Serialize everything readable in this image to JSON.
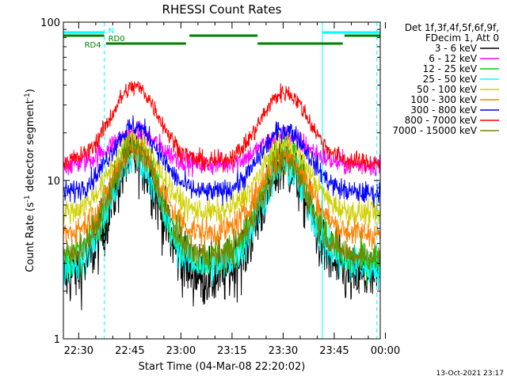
{
  "chart_data": {
    "type": "line",
    "title": "RHESSI Count Rates",
    "xlabel": "Start Time (04-Mar-08 22:20:02)",
    "ylabel": "Count Rate (s⁻¹ detector segment⁻¹)",
    "ylabel_parts": [
      "Count Rate (s",
      "-1",
      " detector segment",
      "-1",
      ")"
    ],
    "x_tick_labels": [
      "22:30",
      "22:45",
      "23:00",
      "23:15",
      "23:30",
      "23:45",
      "00:00"
    ],
    "x_tick_minutes": [
      10,
      25,
      40,
      55,
      70,
      85,
      100
    ],
    "x_range_minutes": [
      5.5,
      98.5
    ],
    "y_scale": "log",
    "ylim": [
      1,
      100
    ],
    "y_tick_labels": [
      "1",
      "10",
      "100"
    ],
    "y_ticks": [
      1,
      10,
      100
    ],
    "grid": false,
    "legend_position": "right",
    "legend_header": [
      "Det 1f,3f,4f,5f,6f,9f,",
      "FDecim 1, Att 0"
    ],
    "series": [
      {
        "name": "3 - 6 keV",
        "color": "#000000",
        "base": 2.4,
        "peak1": 14,
        "peak2": 12.5,
        "noise": 0.1
      },
      {
        "name": "6 - 12 keV",
        "color": "#ff00ff",
        "base": 12.5,
        "peak1": 20,
        "peak2": 19,
        "noise": 0.035
      },
      {
        "name": "12 - 25 keV",
        "color": "#00d000",
        "base": 3.1,
        "peak1": 17,
        "peak2": 15,
        "noise": 0.06
      },
      {
        "name": "25 - 50 keV",
        "color": "#00ffff",
        "base": 2.8,
        "peak1": 14,
        "peak2": 12,
        "noise": 0.06
      },
      {
        "name": "50 - 100 keV",
        "color": "#d0d000",
        "base": 6.2,
        "peak1": 18,
        "peak2": 17,
        "noise": 0.04
      },
      {
        "name": "100 - 300 keV",
        "color": "#ff8000",
        "base": 4.6,
        "peak1": 15.5,
        "peak2": 14.5,
        "noise": 0.045
      },
      {
        "name": "300 - 800 keV",
        "color": "#0000ff",
        "base": 8.3,
        "peak1": 22,
        "peak2": 21,
        "noise": 0.035
      },
      {
        "name": "800 - 7000 keV",
        "color": "#ff0000",
        "base": 13,
        "peak1": 39,
        "peak2": 36,
        "noise": 0.03
      },
      {
        "name": "7000 - 15000 keV",
        "color": "#808000",
        "base": 3.3,
        "peak1": 16,
        "peak2": 13,
        "noise": 0.05
      }
    ],
    "peak_minutes": [
      26.5,
      70.5
    ],
    "peak_width_minutes": 10,
    "night_transitions_minutes": [
      17.5,
      81.5,
      97.5
    ],
    "flag_bars": [
      {
        "label": "N",
        "color": "#00ffff",
        "segments": [
          [
            5.5,
            17.5
          ],
          [
            81.5,
            98.5
          ]
        ]
      },
      {
        "label": "RD0",
        "color": "#008000",
        "segments": [
          [
            5.5,
            17.5
          ],
          [
            42.5,
            62.5
          ],
          [
            88,
            98.5
          ]
        ]
      },
      {
        "label": "RD4",
        "color": "#008000",
        "segments": [
          [
            18,
            41.5
          ],
          [
            62.5,
            87.5
          ]
        ]
      }
    ]
  },
  "timestamp": "13-Oct-2021 23:17"
}
